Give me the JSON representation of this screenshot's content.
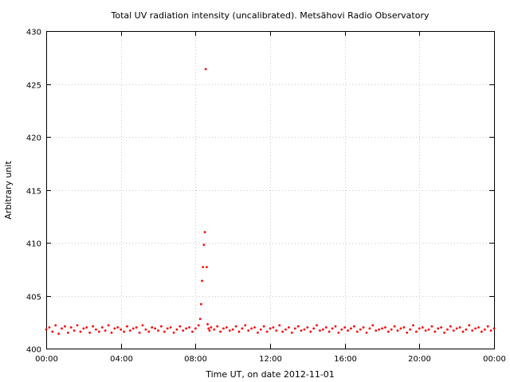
{
  "chart_data": {
    "type": "scatter",
    "title": "Total UV radiation intensity (uncalibrated). Metsähovi Radio Observatory",
    "xlabel": "Time UT, on date 2012-11-01",
    "ylabel": "Arbitrary unit",
    "xlim": [
      "00:00",
      "24:00"
    ],
    "ylim": [
      400,
      430
    ],
    "x_ticks": [
      "00:00",
      "04:00",
      "08:00",
      "12:00",
      "16:00",
      "20:00",
      "00:00"
    ],
    "y_ticks": [
      "400",
      "405",
      "410",
      "415",
      "420",
      "425",
      "430"
    ],
    "grid": true,
    "marker_color": "#ff0000",
    "series": [
      {
        "x": [
          "00:00",
          "00:10",
          "00:20",
          "00:30",
          "00:40",
          "00:50",
          "01:00",
          "01:10",
          "01:20",
          "01:30",
          "01:40",
          "01:50",
          "02:00",
          "02:10",
          "02:20",
          "02:30",
          "02:40",
          "02:50",
          "03:00",
          "03:10",
          "03:20",
          "03:30",
          "03:40",
          "03:50",
          "04:00",
          "04:10",
          "04:20",
          "04:30",
          "04:40",
          "04:50",
          "05:00",
          "05:10",
          "05:20",
          "05:30",
          "05:40",
          "05:50",
          "06:00",
          "06:10",
          "06:20",
          "06:30",
          "06:40",
          "06:50",
          "07:00",
          "07:10",
          "07:20",
          "07:30",
          "07:40",
          "07:50",
          "08:00",
          "08:10",
          "08:15",
          "08:18",
          "08:21",
          "08:24",
          "08:27",
          "08:30",
          "08:33",
          "08:36",
          "08:39",
          "08:42",
          "08:45",
          "08:50",
          "09:00",
          "09:10",
          "09:20",
          "09:30",
          "09:40",
          "09:50",
          "10:00",
          "10:10",
          "10:20",
          "10:30",
          "10:40",
          "10:50",
          "11:00",
          "11:10",
          "11:20",
          "11:30",
          "11:40",
          "11:50",
          "12:00",
          "12:10",
          "12:20",
          "12:30",
          "12:40",
          "12:50",
          "13:00",
          "13:10",
          "13:20",
          "13:30",
          "13:40",
          "13:50",
          "14:00",
          "14:10",
          "14:20",
          "14:30",
          "14:40",
          "14:50",
          "15:00",
          "15:10",
          "15:20",
          "15:30",
          "15:40",
          "15:50",
          "16:00",
          "16:10",
          "16:20",
          "16:30",
          "16:40",
          "16:50",
          "17:00",
          "17:10",
          "17:20",
          "17:30",
          "17:40",
          "17:50",
          "18:00",
          "18:10",
          "18:20",
          "18:30",
          "18:40",
          "18:50",
          "19:00",
          "19:10",
          "19:20",
          "19:30",
          "19:40",
          "19:50",
          "20:00",
          "20:10",
          "20:20",
          "20:30",
          "20:40",
          "20:50",
          "21:00",
          "21:10",
          "21:20",
          "21:30",
          "21:40",
          "21:50",
          "22:00",
          "22:10",
          "22:20",
          "22:30",
          "22:40",
          "22:50",
          "23:00",
          "23:10",
          "23:20",
          "23:30",
          "23:40",
          "23:50",
          "00:00"
        ],
        "y": [
          401.8,
          402.0,
          401.6,
          402.2,
          401.4,
          401.9,
          402.1,
          401.5,
          402.0,
          401.7,
          402.2,
          401.6,
          401.9,
          402.0,
          401.5,
          402.1,
          401.8,
          401.6,
          402.0,
          401.7,
          402.2,
          401.5,
          401.9,
          402.0,
          401.8,
          401.6,
          402.1,
          401.7,
          401.9,
          402.0,
          401.5,
          402.2,
          401.8,
          401.6,
          402.0,
          401.9,
          401.7,
          402.1,
          401.6,
          401.9,
          402.0,
          401.5,
          401.8,
          402.1,
          401.7,
          401.9,
          402.0,
          401.6,
          401.9,
          402.2,
          402.8,
          404.2,
          406.4,
          407.7,
          409.8,
          411.0,
          426.4,
          407.7,
          402.3,
          401.9,
          401.7,
          402.0,
          401.8,
          402.1,
          401.6,
          401.9,
          402.0,
          401.7,
          401.8,
          402.1,
          401.6,
          401.9,
          402.2,
          401.7,
          401.9,
          402.0,
          401.5,
          401.8,
          402.1,
          401.6,
          401.9,
          402.0,
          401.7,
          402.2,
          401.6,
          401.8,
          402.0,
          401.5,
          401.9,
          402.1,
          401.7,
          401.8,
          402.0,
          401.6,
          401.9,
          402.2,
          401.7,
          401.8,
          402.0,
          401.6,
          401.9,
          402.1,
          401.5,
          401.8,
          402.0,
          401.7,
          401.9,
          402.1,
          401.6,
          401.8,
          402.0,
          401.5,
          401.9,
          402.2,
          401.7,
          401.8,
          401.9,
          402.0,
          401.6,
          401.8,
          402.1,
          401.7,
          401.9,
          402.0,
          401.5,
          401.8,
          402.2,
          401.6,
          401.9,
          402.0,
          401.7,
          401.8,
          402.1,
          401.6,
          401.9,
          402.0,
          401.5,
          401.8,
          402.1,
          401.7,
          401.9,
          402.0,
          401.6,
          401.8,
          402.2,
          401.7,
          401.9,
          402.0,
          401.6,
          401.8,
          402.1,
          401.7,
          401.9
        ]
      }
    ]
  }
}
